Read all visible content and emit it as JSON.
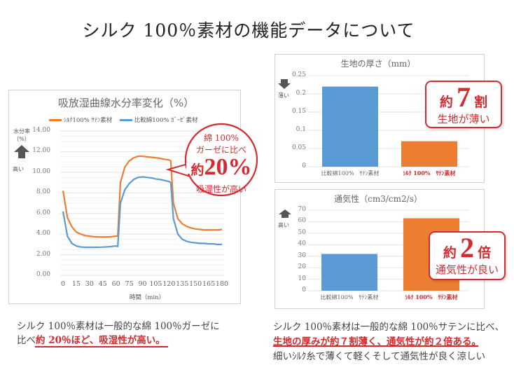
{
  "title": "シルク 100％素材の機能データについて",
  "colors": {
    "silk": "#ed7d31",
    "cotton": "#5b9bd5",
    "accent": "#d52a2f"
  },
  "chart_data": [
    {
      "type": "line",
      "title": "吸放湿曲線水分率変化（%）",
      "xlabel": "時間（min）",
      "ylabel": "水分率（%）",
      "y_indicator": {
        "icon": "arrow-up-icon",
        "label": "高い"
      },
      "ylim": [
        0,
        14
      ],
      "yticks": [
        "14.00",
        "12.00",
        "10.00",
        "8.00",
        "6.00",
        "4.00",
        "2.00",
        "0.00"
      ],
      "xlim": [
        0,
        180
      ],
      "xticks": [
        "0",
        "15",
        "30",
        "45",
        "60",
        "75",
        "90",
        "105",
        "120",
        "135",
        "150",
        "165",
        "180"
      ],
      "grid": true,
      "legend": "top",
      "x": [
        0,
        5,
        10,
        15,
        20,
        25,
        30,
        35,
        40,
        45,
        50,
        55,
        60,
        62,
        65,
        70,
        75,
        80,
        85,
        90,
        95,
        100,
        105,
        110,
        115,
        120,
        122,
        125,
        130,
        135,
        140,
        145,
        150,
        155,
        160,
        165,
        170,
        175,
        180
      ],
      "series": [
        {
          "name": "ｼﾙｸ100% ｻﾃﾝ素材",
          "color": "#ed7d31",
          "values": [
            8.2,
            5.6,
            4.7,
            4.2,
            4.0,
            3.85,
            3.8,
            3.75,
            3.72,
            3.72,
            3.72,
            3.75,
            3.8,
            3.8,
            9.0,
            10.5,
            11.1,
            11.4,
            11.55,
            11.55,
            11.5,
            11.45,
            11.4,
            11.35,
            11.25,
            11.2,
            11.1,
            7.0,
            5.5,
            5.0,
            4.75,
            4.6,
            4.5,
            4.45,
            4.4,
            4.4,
            4.4,
            4.4,
            4.45
          ]
        },
        {
          "name": "比較綿100% ｶﾞｰｾﾞ素材",
          "color": "#5b9bd5",
          "values": [
            6.2,
            3.8,
            3.1,
            2.85,
            2.75,
            2.72,
            2.72,
            2.72,
            2.73,
            2.74,
            2.76,
            2.8,
            2.85,
            2.8,
            7.0,
            8.3,
            8.9,
            9.3,
            9.5,
            9.55,
            9.5,
            9.45,
            9.35,
            9.3,
            9.2,
            9.1,
            9.0,
            5.5,
            4.0,
            3.5,
            3.3,
            3.2,
            3.15,
            3.1,
            3.1,
            3.05,
            3.05,
            3.0,
            3.0
          ]
        }
      ],
      "callout": {
        "line1": "綿 100%",
        "line2": "ガーゼに比べ",
        "prefix": "約",
        "big": "20%",
        "line4": "吸湿性が高い"
      }
    },
    {
      "type": "bar",
      "title": "生地の厚さ（mm）",
      "y_indicator": {
        "icon": "arrow-down-icon",
        "label": "薄い"
      },
      "ylim": [
        0,
        0.25
      ],
      "yticks": [
        "0.25",
        "0.2",
        "0.15",
        "0.1",
        "0.05",
        "0"
      ],
      "grid": true,
      "categories": [
        "比較綿100%　ｻﾃﾝ素材",
        "ｼﾙｸ 100%　ｻﾃﾝ素材"
      ],
      "values": [
        0.22,
        0.07
      ],
      "callout": {
        "prefix": "約",
        "big": "7",
        "suffix": "割",
        "sub": "生地が薄い"
      }
    },
    {
      "type": "bar",
      "title": "通気性（cm3/cm2/s）",
      "y_indicator": {
        "icon": "arrow-up-icon",
        "label": "高い"
      },
      "ylim": [
        0,
        70
      ],
      "yticks": [
        "70",
        "60",
        "50",
        "40",
        "30",
        "20",
        "10",
        "0"
      ],
      "grid": true,
      "categories": [
        "比較綿100%　ｻﾃﾝ素材",
        "ｼﾙｸ 100%　ｻﾃﾝ素材"
      ],
      "values": [
        32,
        63
      ],
      "callout": {
        "prefix": "約",
        "big": "2",
        "suffix": "倍",
        "sub": "通気性が良い"
      }
    }
  ],
  "text_left": {
    "line1": "シルク 100％素材は一般的な綿 100％ガーゼに",
    "line2_plain": "比べ",
    "line2_red": "約 20％ほど、吸湿性が高い。"
  },
  "text_right": {
    "line1": "シルク 100％素材は一般的な綿 100％サテンに比べ、",
    "line2_red": "生地の厚みが約７割薄く、通気性が約２倍ある。",
    "line3": "細いｼﾙｸ糸で薄くて軽くそして通気性が良く涼しい"
  }
}
